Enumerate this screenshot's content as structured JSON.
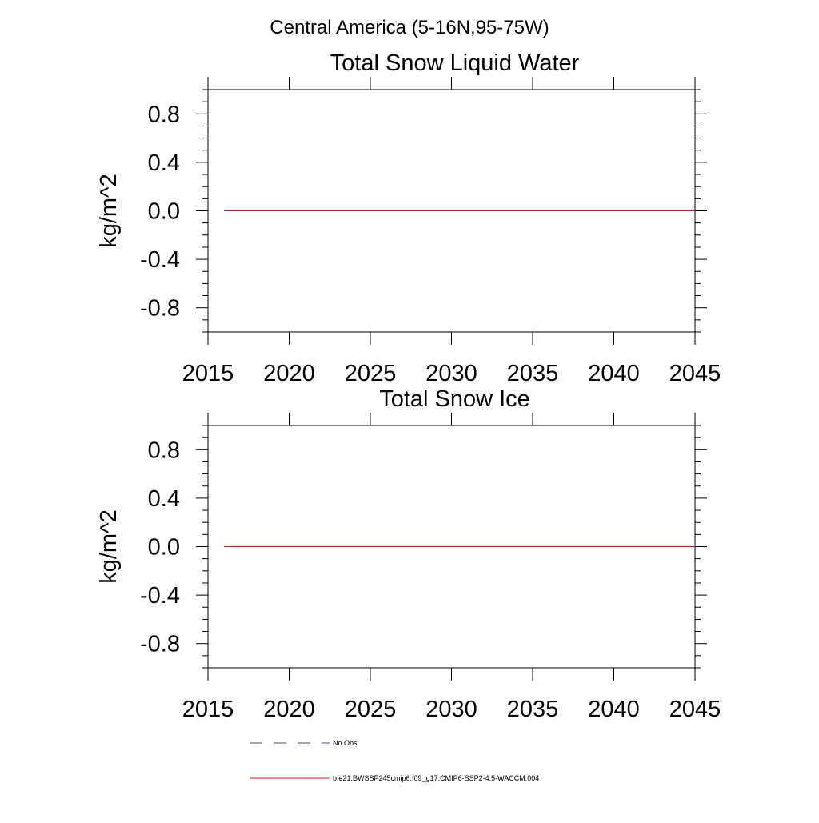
{
  "figure": {
    "title": "Central America (5-16N,95-75W)"
  },
  "chart_data": [
    {
      "type": "line",
      "title": "Total Snow Liquid Water",
      "xlabel": "",
      "ylabel": "kg/m^2",
      "xlim": [
        2015,
        2045
      ],
      "ylim": [
        -1,
        1
      ],
      "xticks": [
        2015,
        2020,
        2025,
        2030,
        2035,
        2040,
        2045
      ],
      "yticks": [
        -0.8,
        -0.4,
        0.0,
        0.4,
        0.8
      ],
      "ytick_labels": [
        "-0.8",
        "-0.4",
        "0.0",
        "0.4",
        "0.8"
      ],
      "grid": false,
      "series": [
        {
          "name": "b.e21.BWSSP245cmip6.f09_g17.CMIP6-SSP2-4.5-WACCM.004",
          "color": "#ff0000",
          "x": [
            2016,
            2045
          ],
          "y": [
            0.0,
            0.0
          ]
        }
      ]
    },
    {
      "type": "line",
      "title": "Total Snow Ice",
      "xlabel": "",
      "ylabel": "kg/m^2",
      "xlim": [
        2015,
        2045
      ],
      "ylim": [
        -1,
        1
      ],
      "xticks": [
        2015,
        2020,
        2025,
        2030,
        2035,
        2040,
        2045
      ],
      "yticks": [
        -0.8,
        -0.4,
        0.0,
        0.4,
        0.8
      ],
      "ytick_labels": [
        "-0.8",
        "-0.4",
        "0.0",
        "0.4",
        "0.8"
      ],
      "grid": false,
      "series": [
        {
          "name": "b.e21.BWSSP245cmip6.f09_g17.CMIP6-SSP2-4.5-WACCM.004",
          "color": "#ff0000",
          "x": [
            2016,
            2045
          ],
          "y": [
            0.0,
            0.0
          ]
        }
      ]
    }
  ],
  "legend": {
    "placement": "bottom",
    "entries": [
      {
        "label": "No Obs",
        "color": "#4a4a8a",
        "style": "dashed"
      },
      {
        "label": "b.e21.BWSSP245cmip6.f09_g17.CMIP6-SSP2-4.5-WACCM.004",
        "color": "#ff0000",
        "style": "solid"
      }
    ]
  }
}
